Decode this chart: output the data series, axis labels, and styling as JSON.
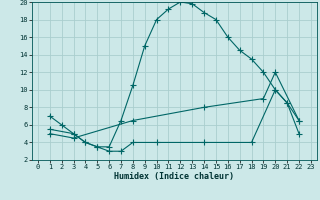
{
  "xlabel": "Humidex (Indice chaleur)",
  "ylabel": "",
  "bg_color": "#cce8e8",
  "grid_color": "#aacece",
  "line_color": "#006666",
  "xlim": [
    -0.5,
    23.5
  ],
  "ylim": [
    2,
    20
  ],
  "xticks": [
    0,
    1,
    2,
    3,
    4,
    5,
    6,
    7,
    8,
    9,
    10,
    11,
    12,
    13,
    14,
    15,
    16,
    17,
    18,
    19,
    20,
    21,
    22,
    23
  ],
  "yticks": [
    2,
    4,
    6,
    8,
    10,
    12,
    14,
    16,
    18,
    20
  ],
  "line1_x": [
    1,
    2,
    3,
    4,
    5,
    6,
    7,
    8,
    9,
    10,
    11,
    12,
    13,
    14,
    15,
    16,
    17,
    18,
    19,
    20,
    21,
    22
  ],
  "line1_y": [
    7,
    6,
    5,
    4,
    3.5,
    3.5,
    6.5,
    10.5,
    15,
    18,
    19.2,
    20,
    19.8,
    18.8,
    18,
    16,
    14.5,
    13.5,
    12,
    10,
    8.5,
    6.5
  ],
  "line2_x": [
    1,
    3,
    4,
    5,
    6,
    7,
    8,
    10,
    14,
    18,
    20,
    21,
    22
  ],
  "line2_y": [
    5.5,
    5,
    4,
    3.5,
    3,
    3,
    4,
    4,
    4,
    4,
    10,
    8.5,
    5
  ],
  "line3_x": [
    1,
    3,
    8,
    14,
    19,
    20,
    22
  ],
  "line3_y": [
    5,
    4.5,
    6.5,
    8,
    9,
    12,
    6.5
  ]
}
